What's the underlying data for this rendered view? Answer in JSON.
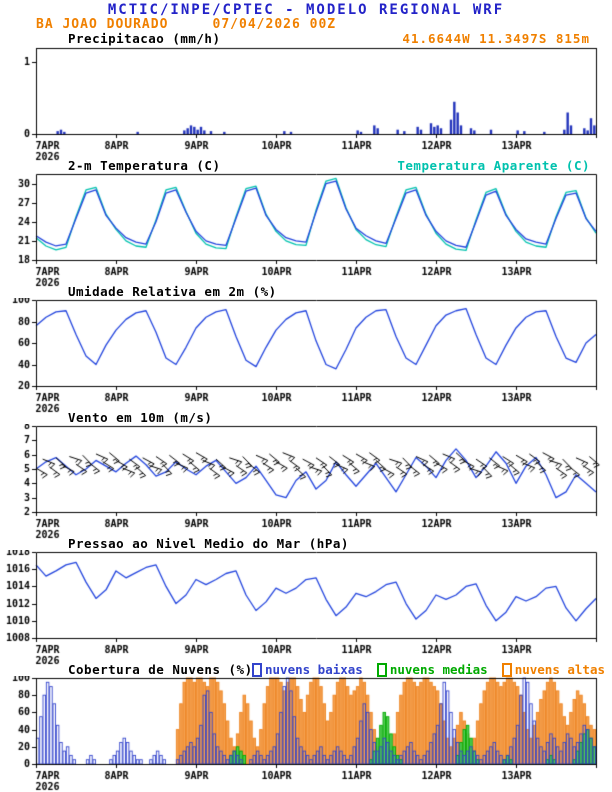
{
  "header": {
    "title": "MCTIC/INPE/CPTEC - MODELO REGIONAL WRF",
    "subtitle": "BA JOAO DOURADO     07/04/2026 00Z",
    "coords": "41.6644W 11.3497S 815m",
    "title_color": "#2323c8",
    "accent_color": "#f08000"
  },
  "xaxis": {
    "day_labels": [
      "7APR",
      "8APR",
      "9APR",
      "10APR",
      "11APR",
      "12APR",
      "13APR"
    ],
    "year": "2026",
    "hours_total": 168
  },
  "panels": [
    {
      "title": "Precipitacao (mm/h)"
    },
    {
      "title": "2-m Temperatura (C)",
      "legend_label": "Temperatura Aparente (C)",
      "legend_color": "#00c2ae"
    },
    {
      "title": "Umidade Relativa em 2m (%)"
    },
    {
      "title": "Vento em 10m (m/s)"
    },
    {
      "title": "Pressao ao Nivel Medio do Mar (hPa)"
    },
    {
      "title": "Cobertura de Nuvens (%)",
      "legend": [
        {
          "label": "nuvens baixas",
          "color": "#3344cc"
        },
        {
          "label": "nuvens medias",
          "color": "#00aa00"
        },
        {
          "label": "nuvens altas",
          "color": "#f08000"
        }
      ]
    }
  ],
  "chart_data": [
    {
      "panel": "precipitation",
      "type": "bar",
      "title": "Precipitacao (mm/h)",
      "ylim": [
        0,
        1.2
      ],
      "yticks": [
        0,
        1
      ],
      "step_hours": 1,
      "bar_color": "#2233bb",
      "values_sparse": {
        "6": 0.04,
        "7": 0.06,
        "8": 0.03,
        "30": 0.03,
        "44": 0.05,
        "45": 0.08,
        "46": 0.12,
        "47": 0.1,
        "48": 0.06,
        "49": 0.1,
        "50": 0.05,
        "52": 0.04,
        "56": 0.03,
        "74": 0.04,
        "76": 0.03,
        "96": 0.05,
        "97": 0.03,
        "101": 0.12,
        "102": 0.08,
        "108": 0.06,
        "110": 0.04,
        "114": 0.1,
        "115": 0.06,
        "118": 0.15,
        "119": 0.1,
        "120": 0.12,
        "121": 0.08,
        "124": 0.2,
        "125": 0.45,
        "126": 0.3,
        "127": 0.12,
        "130": 0.08,
        "131": 0.05,
        "136": 0.06,
        "144": 0.05,
        "146": 0.04,
        "152": 0.03,
        "158": 0.06,
        "159": 0.3,
        "160": 0.12,
        "164": 0.08,
        "165": 0.05,
        "166": 0.22,
        "167": 0.12
      }
    },
    {
      "panel": "temperature",
      "type": "line",
      "title": "2-m Temperatura (C)",
      "ylim": [
        18,
        31.5
      ],
      "yticks": [
        18,
        21,
        24,
        27,
        30
      ],
      "step_hours": 3,
      "series": [
        {
          "name": "Temperatura Aparente (C)",
          "color": "#00c2ae",
          "values": [
            21.5,
            20.2,
            19.6,
            20,
            24.8,
            29,
            29.4,
            25.2,
            22.8,
            21,
            20.2,
            20,
            24.3,
            29,
            29.4,
            25.6,
            22.2,
            20.5,
            19.9,
            19.8,
            24.8,
            29.2,
            29.6,
            25.2,
            22.5,
            21,
            20.4,
            20.3,
            25.8,
            30.4,
            30.8,
            26.2,
            22.8,
            21.2,
            20.4,
            20.1,
            24.8,
            29,
            29.4,
            25.2,
            22.2,
            20.5,
            19.7,
            19.5,
            24.3,
            28.6,
            29.2,
            25.2,
            22.5,
            20.8,
            20.2,
            20,
            24.8,
            28.6,
            28.9,
            24.6,
            22.2
          ]
        },
        {
          "name": "2-m Temperatura (C)",
          "color": "#2244dd",
          "values": [
            21.8,
            20.8,
            20.2,
            20.5,
            24.5,
            28.5,
            29,
            25,
            23,
            21.5,
            20.8,
            20.5,
            24,
            28.5,
            29,
            25.5,
            22.5,
            21,
            20.5,
            20.3,
            24.5,
            28.8,
            29.3,
            25,
            22.8,
            21.5,
            21,
            20.8,
            25.5,
            30,
            30.4,
            26,
            23,
            21.8,
            21,
            20.6,
            24.5,
            28.5,
            29,
            25,
            22.5,
            21,
            20.3,
            20,
            24,
            28.2,
            28.8,
            25,
            22.8,
            21.3,
            20.8,
            20.5,
            24.5,
            28.2,
            28.5,
            24.5,
            22.5
          ]
        }
      ]
    },
    {
      "panel": "humidity",
      "type": "line",
      "title": "Umidade Relativa em 2m (%)",
      "ylim": [
        20,
        100
      ],
      "yticks": [
        20,
        40,
        60,
        80,
        100
      ],
      "step_hours": 3,
      "series": [
        {
          "name": "Umidade Relativa em 2m (%)",
          "color": "#2244dd",
          "values": [
            76,
            84,
            89,
            90,
            68,
            48,
            40,
            58,
            72,
            82,
            88,
            90,
            70,
            46,
            40,
            56,
            74,
            84,
            89,
            91,
            66,
            44,
            38,
            56,
            72,
            82,
            88,
            90,
            62,
            40,
            36,
            54,
            74,
            84,
            90,
            91,
            66,
            46,
            40,
            58,
            76,
            86,
            90,
            92,
            68,
            46,
            40,
            58,
            74,
            84,
            89,
            90,
            66,
            46,
            42,
            60,
            68
          ]
        }
      ]
    },
    {
      "panel": "wind",
      "type": "wind",
      "title": "Vento em 10m (m/s)",
      "ylim": [
        2,
        8
      ],
      "yticks": [
        2,
        3,
        4,
        5,
        6,
        7,
        8
      ],
      "step_hours": 3,
      "series": [
        {
          "name": "Vento em 10m (m/s)",
          "color": "#2244dd",
          "values": [
            5,
            5.5,
            5.8,
            5.2,
            4.6,
            5,
            5.6,
            5.2,
            4.8,
            5.4,
            5.9,
            5.3,
            4.5,
            4.8,
            5.5,
            5,
            4.6,
            5.2,
            5.6,
            4.8,
            4,
            4.4,
            5.2,
            4.2,
            3.2,
            3,
            4.2,
            4.8,
            3.6,
            4.2,
            5.5,
            4.6,
            3.8,
            4.6,
            5.4,
            4.4,
            3.4,
            4.6,
            5.8,
            5.2,
            4.4,
            5.6,
            6.4,
            5.6,
            4.4,
            5.2,
            6.2,
            5.4,
            4,
            5.2,
            5.8,
            4.6,
            3,
            3.4,
            4.6,
            4,
            3.4
          ]
        }
      ],
      "barbs": {
        "step_hours": 2,
        "plot_level": 5.6,
        "color": "#000000",
        "dirs_deg": [
          120,
          112,
          126,
          132,
          118,
          108,
          124,
          136,
          128,
          114,
          122,
          130,
          120,
          112,
          126,
          132,
          118,
          108,
          124,
          136,
          128,
          114,
          122,
          130,
          120,
          112,
          126,
          132,
          118,
          108,
          124,
          136,
          128,
          114,
          122,
          130,
          120,
          112,
          126,
          132,
          118,
          108,
          124,
          136,
          128,
          114,
          122,
          130,
          120,
          112,
          126,
          132,
          118,
          108,
          124,
          136,
          128,
          114,
          122,
          130,
          120,
          112,
          126,
          132,
          118,
          108,
          124,
          136,
          128,
          114,
          122,
          130,
          120,
          112,
          126,
          132,
          118,
          108,
          124,
          136,
          128,
          114,
          122,
          130
        ]
      }
    },
    {
      "panel": "pressure",
      "type": "line",
      "title": "Pressao ao Nivel Medio do Mar (hPa)",
      "ylim": [
        1008,
        1018
      ],
      "yticks": [
        1008,
        1010,
        1012,
        1014,
        1016,
        1018
      ],
      "step_hours": 3,
      "series": [
        {
          "name": "Pressao ao Nivel Medio do Mar (hPa)",
          "color": "#2244dd",
          "values": [
            1016.5,
            1015.2,
            1015.8,
            1016.5,
            1016.8,
            1014.5,
            1012.6,
            1013.6,
            1015.8,
            1015,
            1015.6,
            1016.2,
            1016.5,
            1014,
            1012,
            1013,
            1014.8,
            1014.2,
            1014.8,
            1015.5,
            1015.8,
            1013,
            1011.2,
            1012.2,
            1013.8,
            1013.2,
            1013.8,
            1014.8,
            1015,
            1012.5,
            1010.6,
            1011.6,
            1013.2,
            1012.8,
            1013.4,
            1014.2,
            1014.5,
            1012,
            1010.2,
            1011.2,
            1013,
            1012.5,
            1013,
            1014,
            1014.3,
            1011.8,
            1010,
            1011,
            1012.8,
            1012.3,
            1012.8,
            1013.8,
            1014,
            1011.5,
            1010,
            1011.4,
            1012.6
          ]
        }
      ]
    },
    {
      "panel": "clouds",
      "type": "bar",
      "title": "Cobertura de Nuvens (%)",
      "ylim": [
        0,
        100
      ],
      "yticks": [
        0,
        20,
        40,
        60,
        80,
        100
      ],
      "step_hours": 1,
      "series": [
        {
          "name": "nuvens altas",
          "stroke": "#ee8420",
          "fill": "#f4a050",
          "values": [
            0,
            0,
            0,
            0,
            0,
            0,
            0,
            0,
            0,
            0,
            0,
            0,
            0,
            0,
            0,
            0,
            0,
            0,
            0,
            0,
            0,
            0,
            0,
            0,
            0,
            0,
            0,
            0,
            0,
            0,
            0,
            0,
            0,
            0,
            0,
            0,
            0,
            0,
            0,
            0,
            0,
            0,
            40,
            70,
            95,
            100,
            100,
            95,
            100,
            100,
            95,
            90,
            100,
            100,
            95,
            85,
            70,
            50,
            30,
            20,
            35,
            60,
            80,
            70,
            50,
            30,
            20,
            40,
            70,
            90,
            100,
            100,
            100,
            95,
            85,
            95,
            100,
            100,
            90,
            75,
            60,
            80,
            95,
            100,
            100,
            90,
            70,
            50,
            60,
            80,
            95,
            100,
            100,
            90,
            80,
            85,
            90,
            100,
            95,
            80,
            60,
            40,
            20,
            10,
            5,
            10,
            20,
            35,
            60,
            80,
            95,
            100,
            100,
            95,
            90,
            95,
            100,
            100,
            95,
            90,
            85,
            70,
            50,
            30,
            20,
            30,
            45,
            60,
            50,
            35,
            20,
            30,
            50,
            70,
            85,
            95,
            100,
            100,
            95,
            90,
            95,
            100,
            100,
            95,
            90,
            80,
            60,
            40,
            30,
            45,
            60,
            75,
            85,
            95,
            100,
            95,
            85,
            70,
            55,
            45,
            60,
            75,
            85,
            80,
            70,
            55,
            45,
            40
          ]
        },
        {
          "name": "nuvens medias",
          "stroke": "#00aa00",
          "fill": "#55cc55",
          "values": [
            0,
            0,
            0,
            0,
            0,
            0,
            0,
            0,
            0,
            0,
            0,
            0,
            0,
            0,
            0,
            0,
            0,
            0,
            0,
            0,
            0,
            0,
            0,
            0,
            0,
            0,
            0,
            0,
            0,
            0,
            0,
            0,
            0,
            0,
            0,
            0,
            0,
            0,
            0,
            0,
            0,
            0,
            0,
            0,
            0,
            0,
            0,
            0,
            0,
            0,
            0,
            0,
            0,
            0,
            0,
            0,
            0,
            0,
            10,
            15,
            20,
            15,
            10,
            0,
            0,
            0,
            0,
            0,
            0,
            0,
            0,
            0,
            0,
            0,
            0,
            0,
            0,
            0,
            0,
            0,
            0,
            0,
            0,
            0,
            0,
            0,
            0,
            0,
            0,
            0,
            0,
            0,
            0,
            0,
            0,
            0,
            0,
            0,
            0,
            0,
            5,
            15,
            30,
            45,
            60,
            55,
            35,
            20,
            10,
            5,
            0,
            0,
            0,
            0,
            0,
            0,
            0,
            0,
            0,
            0,
            0,
            0,
            0,
            0,
            0,
            0,
            10,
            25,
            40,
            45,
            30,
            15,
            5,
            0,
            0,
            0,
            0,
            0,
            0,
            0,
            5,
            10,
            5,
            0,
            0,
            0,
            0,
            0,
            0,
            0,
            0,
            0,
            0,
            5,
            10,
            5,
            0,
            0,
            0,
            0,
            0,
            5,
            15,
            25,
            35,
            40,
            30,
            20
          ]
        },
        {
          "name": "nuvens baixas",
          "stroke": "#3344cc",
          "fill": "none",
          "values": [
            30,
            55,
            80,
            95,
            90,
            70,
            45,
            25,
            15,
            20,
            10,
            5,
            0,
            0,
            0,
            5,
            10,
            5,
            0,
            0,
            0,
            0,
            5,
            10,
            15,
            25,
            30,
            25,
            15,
            10,
            5,
            5,
            0,
            0,
            5,
            10,
            15,
            10,
            5,
            0,
            0,
            0,
            5,
            10,
            15,
            20,
            25,
            20,
            30,
            45,
            80,
            85,
            60,
            35,
            20,
            15,
            10,
            5,
            10,
            15,
            10,
            5,
            0,
            0,
            5,
            10,
            15,
            10,
            5,
            10,
            15,
            20,
            35,
            60,
            90,
            100,
            85,
            55,
            30,
            20,
            15,
            10,
            5,
            10,
            15,
            20,
            10,
            5,
            10,
            15,
            20,
            15,
            10,
            5,
            10,
            20,
            30,
            50,
            70,
            60,
            40,
            25,
            15,
            20,
            30,
            25,
            15,
            10,
            5,
            10,
            15,
            20,
            25,
            15,
            10,
            5,
            10,
            15,
            25,
            35,
            45,
            70,
            95,
            85,
            60,
            40,
            25,
            15,
            10,
            15,
            20,
            15,
            10,
            5,
            10,
            15,
            20,
            25,
            15,
            10,
            5,
            10,
            20,
            30,
            45,
            80,
            100,
            95,
            70,
            50,
            30,
            20,
            15,
            25,
            35,
            30,
            20,
            15,
            25,
            35,
            30,
            20,
            25,
            35,
            45,
            40,
            30,
            20
          ]
        }
      ]
    }
  ]
}
